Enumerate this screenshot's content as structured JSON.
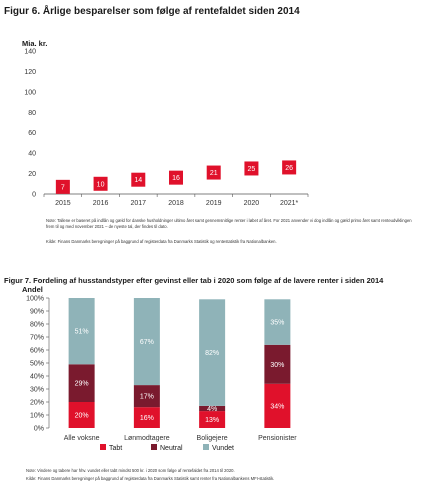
{
  "figures": {
    "fig6": {
      "title": "Figur 6. Årlige besparelser som følge af rentefaldet siden 2014",
      "note": "Note: Tallene er baseret på indlån og gæld for danske husholdninger ultimo året samt gennemsnitlige renter i løbet af året. For 2021 anvender vi dog indlån og gæld primo året samt renteudviklingen frem til og med november 2021 – de nyeste tal, der findes til dato.",
      "source": "Kilde: Finans Danmarks beregninger på baggrund af registerdata fra Danmarks Statistik og rentestatistik fra Nationalbanken."
    },
    "fig7": {
      "title": "Figur 7. Fordeling af husstandstyper efter gevinst eller tab i 2020 som følge af de lavere renter i siden 2014",
      "note": "Note: Vindere og tabere har hhv. vundet eller tabt mindst 500 kr. i 2020 som følge af rentefaldet fra 2014 til 2020.",
      "source": "Kilde: Finans Danmarks beregninger på baggrund af registerdata fra Danmarks Statistik samt renter fra Nationalbankens MFI-statistik."
    }
  },
  "chart_data": [
    {
      "type": "scatter",
      "title": "Figur 6. Årlige besparelser som følge af rentefaldet siden 2014",
      "ylabel": "Mia. kr.",
      "xlabel": "",
      "categories": [
        "2015",
        "2016",
        "2017",
        "2018",
        "2019",
        "2020",
        "2021*"
      ],
      "values": [
        7,
        10,
        14,
        16,
        21,
        25,
        26
      ],
      "data_labels": [
        "7",
        "10",
        "14",
        "16",
        "21",
        "25",
        "26"
      ],
      "y_ticks": [
        "0",
        "20",
        "40",
        "60",
        "80",
        "100",
        "120",
        "140"
      ],
      "ylim": [
        0,
        140
      ],
      "grid": false,
      "marker_color": "#e0112b"
    },
    {
      "type": "bar",
      "stacked": true,
      "title": "Figur 7. Fordeling af husstandstyper efter gevinst eller tab i 2020 som følge af de lavere renter i siden 2014",
      "ylabel": "Andel",
      "xlabel": "",
      "categories": [
        "Alle voksne",
        "Lønmodtagere",
        "Boligejere",
        "Pensionister"
      ],
      "series": [
        {
          "name": "Tabt",
          "values": [
            20,
            16,
            13,
            34
          ],
          "labels": [
            "20%",
            "16%",
            "13%",
            "34%"
          ],
          "color": "#e0112b"
        },
        {
          "name": "Neutral",
          "values": [
            29,
            17,
            4,
            30
          ],
          "labels": [
            "29%",
            "17%",
            "4%",
            "30%"
          ],
          "color": "#7a1a2e"
        },
        {
          "name": "Vundet",
          "values": [
            51,
            67,
            82,
            35
          ],
          "labels": [
            "51%",
            "67%",
            "82%",
            "35%"
          ],
          "color": "#8fb3b8"
        }
      ],
      "y_ticks": [
        "0%",
        "10%",
        "20%",
        "30%",
        "40%",
        "50%",
        "60%",
        "70%",
        "80%",
        "90%",
        "100%"
      ],
      "ylim": [
        0,
        100
      ],
      "grid": false,
      "legend_position": "bottom"
    }
  ]
}
